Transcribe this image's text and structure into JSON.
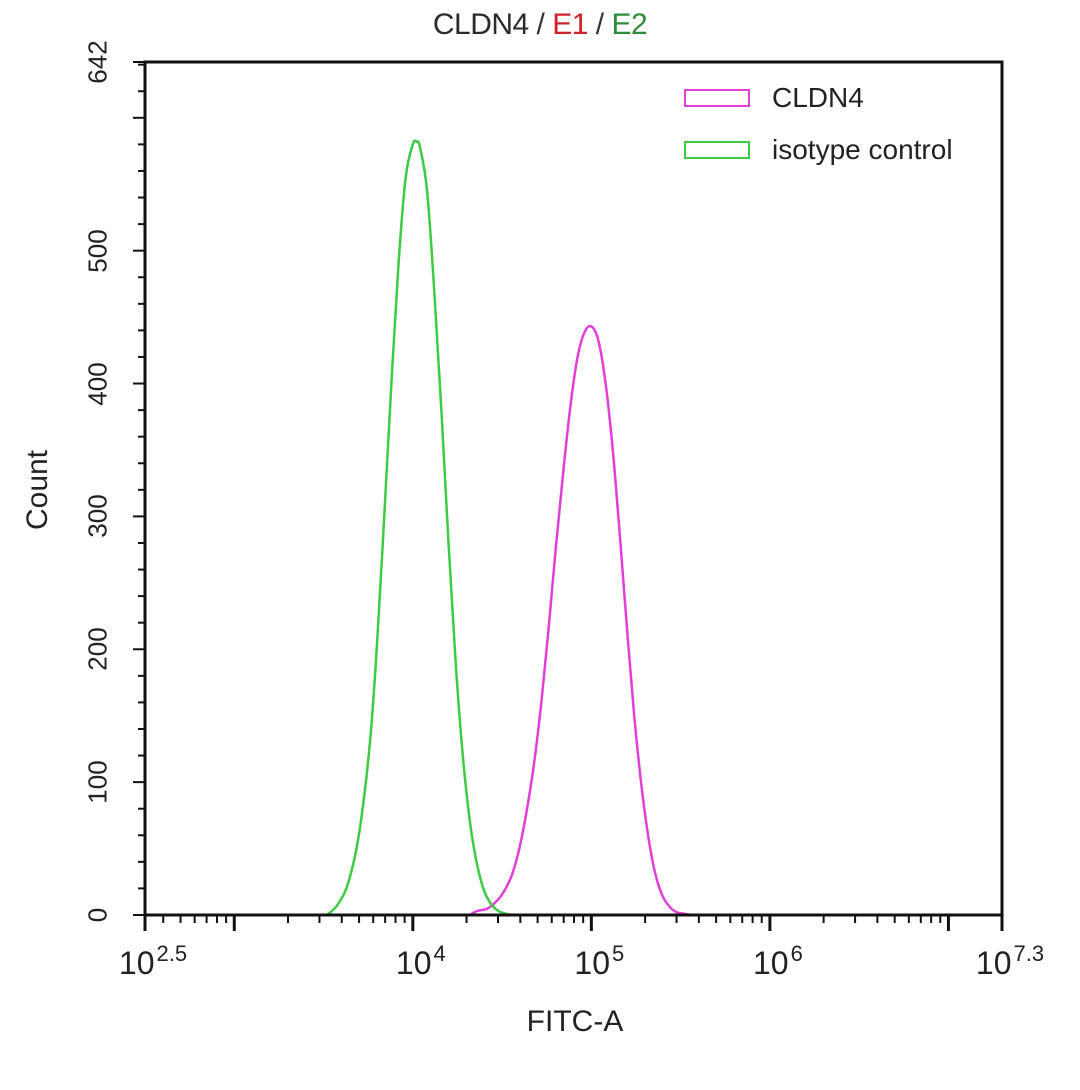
{
  "title": {
    "parts": [
      {
        "text": "CLDN4",
        "color": "#2b2b2b"
      },
      {
        "text": " / ",
        "color": "#333333"
      },
      {
        "text": "E1",
        "color": "#d0202a"
      },
      {
        "text": " / ",
        "color": "#333333"
      },
      {
        "text": "E2",
        "color": "#2e8b3a"
      }
    ]
  },
  "axes": {
    "xlabel": "FITC-A",
    "ylabel": "Count",
    "yticks": [
      {
        "label": "0",
        "value": 0
      },
      {
        "label": "100",
        "value": 100
      },
      {
        "label": "200",
        "value": 200
      },
      {
        "label": "300",
        "value": 300
      },
      {
        "label": "400",
        "value": 400
      },
      {
        "label": "500",
        "value": 500
      },
      {
        "label": "642",
        "value": 642
      }
    ],
    "xticks": [
      {
        "base": "10",
        "exp": "2.5",
        "value": 2.5
      },
      {
        "base": "10",
        "exp": "4",
        "value": 4
      },
      {
        "base": "10",
        "exp": "5",
        "value": 5
      },
      {
        "base": "10",
        "exp": "6",
        "value": 6
      },
      {
        "base": "10",
        "exp": "7.3",
        "value": 7.3
      }
    ]
  },
  "legend": {
    "items": [
      {
        "label": "CLDN4",
        "color": "#e040d8"
      },
      {
        "label": "isotype control",
        "color": "#3ccc44"
      }
    ]
  },
  "chart_data": {
    "type": "line",
    "title": "CLDN4 / E1 / E2",
    "xlabel": "FITC-A",
    "ylabel": "Count",
    "xscale": "log10",
    "xlim_log10": [
      2.5,
      7.3
    ],
    "ylim": [
      0,
      642
    ],
    "grid": false,
    "legend_position": "top-right",
    "x_tick_labels": [
      "10^2.5",
      "10^4",
      "10^5",
      "10^6",
      "10^7.3"
    ],
    "y_tick_labels": [
      "0",
      "100",
      "200",
      "300",
      "400",
      "500",
      "642"
    ],
    "series": [
      {
        "name": "CLDN4",
        "color": "#e040d8",
        "x_log10": [
          4.32,
          4.36,
          4.42,
          4.48,
          4.52,
          4.56,
          4.6,
          4.64,
          4.68,
          4.72,
          4.76,
          4.8,
          4.84,
          4.88,
          4.92,
          4.96,
          5.0,
          5.04,
          5.08,
          5.12,
          5.16,
          5.2,
          5.24,
          5.28,
          5.32,
          5.36,
          5.4,
          5.44,
          5.48,
          5.52,
          5.56,
          5.6
        ],
        "y": [
          0,
          3,
          5,
          12,
          20,
          32,
          52,
          80,
          115,
          160,
          215,
          275,
          330,
          380,
          418,
          438,
          443,
          432,
          400,
          350,
          285,
          215,
          150,
          98,
          58,
          30,
          14,
          6,
          2,
          1,
          0,
          0
        ]
      },
      {
        "name": "isotype control",
        "color": "#3ccc44",
        "x_log10": [
          3.52,
          3.58,
          3.64,
          3.7,
          3.76,
          3.8,
          3.84,
          3.88,
          3.92,
          3.96,
          4.0,
          4.02,
          4.04,
          4.08,
          4.12,
          4.16,
          4.2,
          4.24,
          4.28,
          4.32,
          4.36,
          4.4,
          4.44,
          4.48,
          4.52,
          4.56,
          4.6
        ],
        "y": [
          0,
          8,
          25,
          62,
          130,
          205,
          300,
          400,
          490,
          555,
          580,
          582,
          578,
          545,
          470,
          380,
          280,
          190,
          120,
          70,
          38,
          18,
          8,
          3,
          1,
          0,
          0
        ]
      }
    ]
  }
}
